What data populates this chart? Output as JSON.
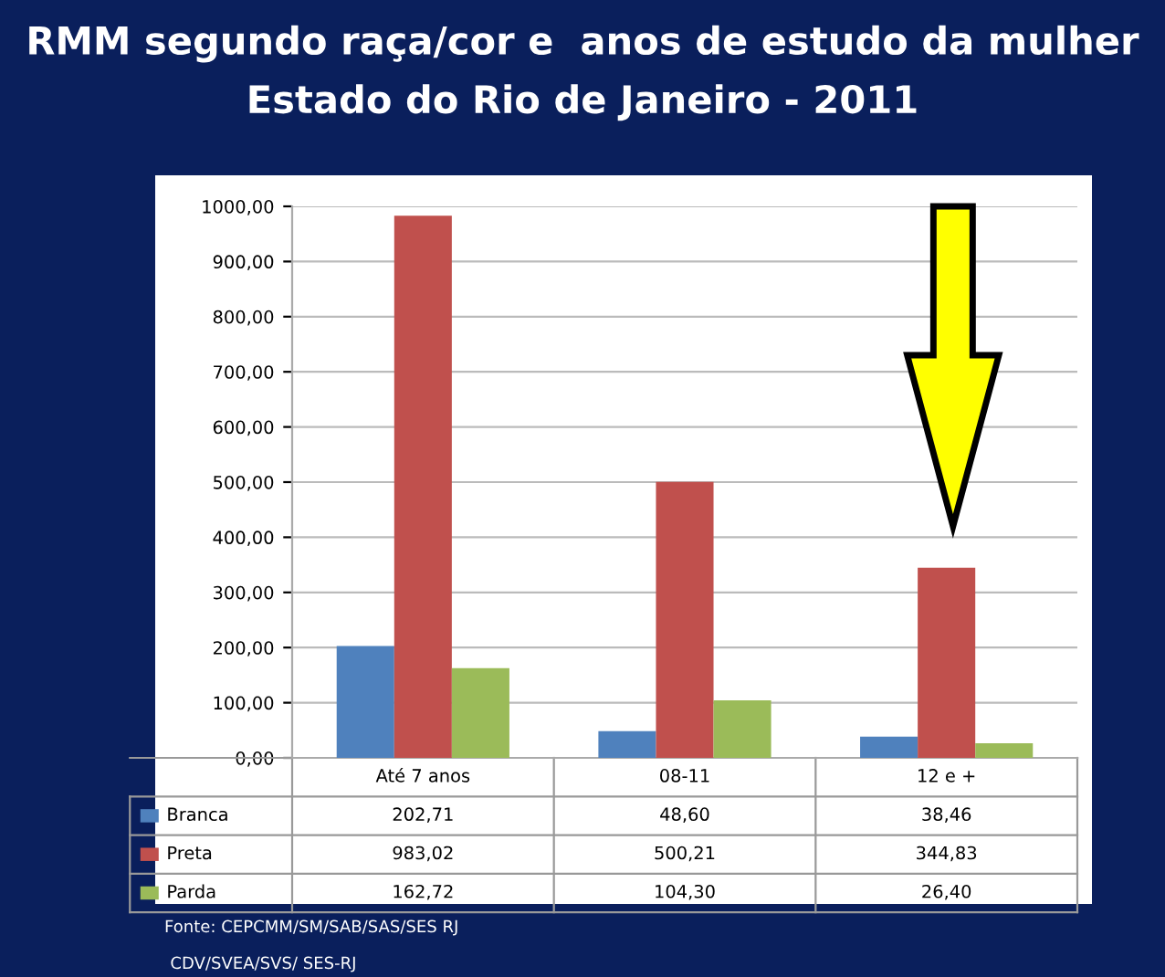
{
  "chart_data": {
    "type": "bar",
    "title": "RMM segundo raça/cor e  anos de estudo da mulher",
    "subtitle": "Estado do Rio de Janeiro - 2011",
    "categories": [
      "Até 7 anos",
      "08-11",
      "12 e +"
    ],
    "series": [
      {
        "name": "Branca",
        "color": "#4f81bd",
        "values": [
          202.71,
          48.6,
          38.46
        ],
        "value_labels": [
          "202,71",
          "48,60",
          "38,46"
        ]
      },
      {
        "name": "Preta",
        "color": "#c0504d",
        "values": [
          983.02,
          500.21,
          344.83
        ],
        "value_labels": [
          "983,02",
          "500,21",
          "344,83"
        ]
      },
      {
        "name": "Parda",
        "color": "#9bbb59",
        "values": [
          162.72,
          104.3,
          26.4
        ],
        "value_labels": [
          "162,72",
          "104,30",
          "26,40"
        ]
      }
    ],
    "ylim": [
      0,
      1000
    ],
    "yticks": [
      {
        "value": 0,
        "label": "0,00"
      },
      {
        "value": 100,
        "label": "100,00"
      },
      {
        "value": 200,
        "label": "200,00"
      },
      {
        "value": 300,
        "label": "300,00"
      },
      {
        "value": 400,
        "label": "400,00"
      },
      {
        "value": 500,
        "label": "500,00"
      },
      {
        "value": 600,
        "label": "600,00"
      },
      {
        "value": 700,
        "label": "700,00"
      },
      {
        "value": 800,
        "label": "800,00"
      },
      {
        "value": 900,
        "label": "900,00"
      },
      {
        "value": 1000,
        "label": "1000,00"
      }
    ],
    "grid": "y",
    "legend": "bottom",
    "annotations": [
      "Fonte: CEPCMM/SM/SAB/SAS/SES RJ",
      "CDV/SVEA/SVS/ SES-RJ"
    ]
  }
}
